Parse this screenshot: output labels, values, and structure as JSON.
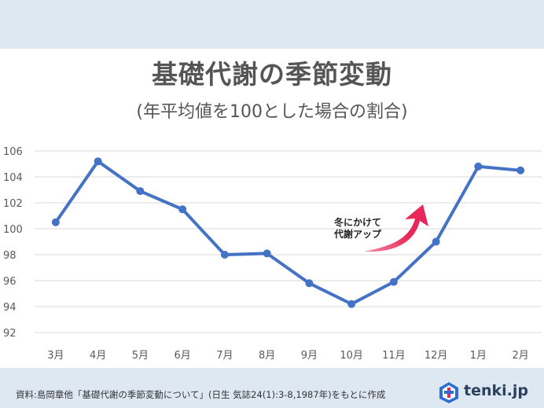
{
  "title": "基礎代謝の季節変動",
  "subtitle": "(年平均値を100とした場合の割合)",
  "source": "資料:島岡章他「基礎代謝の季節変動について」(日生 気誌24(1):3-8,1987年)をもとに作成",
  "logo": {
    "text": "tenki.jp",
    "icon": "tenki-logo-icon"
  },
  "annotation": {
    "lines": [
      "冬にかけて",
      "代謝アップ"
    ],
    "arrow_color": "#e8285a",
    "arrow_icon": "curved-arrow-up-icon"
  },
  "chart_data": {
    "type": "line",
    "categories": [
      "3月",
      "4月",
      "5月",
      "6月",
      "7月",
      "8月",
      "9月",
      "10月",
      "11月",
      "12月",
      "1月",
      "2月"
    ],
    "series": [
      {
        "values": [
          100.5,
          105.2,
          102.9,
          101.5,
          98.0,
          98.1,
          95.8,
          94.2,
          95.9,
          99.0,
          104.8,
          104.5
        ]
      }
    ],
    "ylim": [
      92,
      106
    ],
    "yticks": [
      92,
      94,
      96,
      98,
      100,
      102,
      104,
      106
    ],
    "grid": true,
    "line_color": "#4472c4",
    "title": "基礎代謝の季節変動",
    "xlabel": "",
    "ylabel": ""
  }
}
